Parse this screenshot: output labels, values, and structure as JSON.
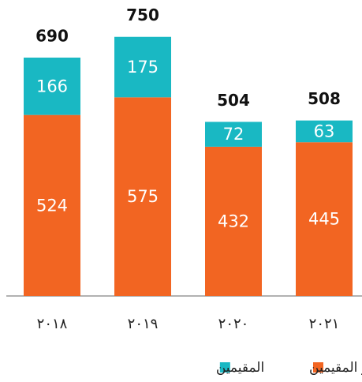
{
  "chart_data": {
    "type": "stacked_bar",
    "categories": [
      "٢٠١٨",
      "٢٠١٩",
      "٢٠٢٠",
      "٢٠٢١"
    ],
    "series": [
      {
        "name": "غير المقيمين",
        "color": "#f26522",
        "values": [
          524,
          575,
          432,
          445
        ]
      },
      {
        "name": "المقيمين",
        "color": "#19b8c3",
        "values": [
          166,
          175,
          72,
          63
        ]
      }
    ],
    "totals": [
      690,
      750,
      504,
      508
    ]
  }
}
